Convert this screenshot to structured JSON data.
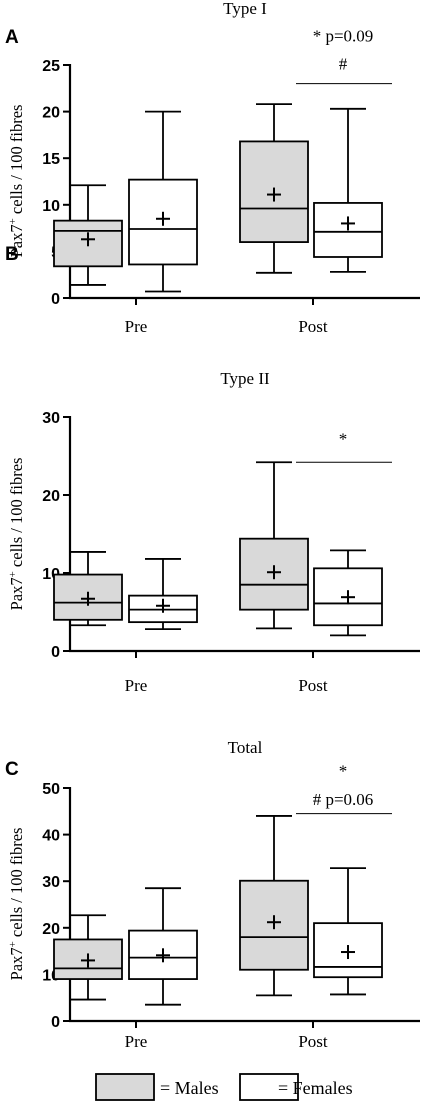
{
  "chart_data": [
    {
      "panel": "A",
      "type": "box",
      "title": "Type I",
      "ylabel": "Pax7+ cells / 100 fibres",
      "ylabel_main": "Pax7",
      "ylabel_sup": "+",
      "ylabel_rest": " cells / 100 fibres",
      "ylim": [
        0,
        25
      ],
      "yticks": [
        "0",
        "5",
        "10",
        "15",
        "20",
        "25"
      ],
      "ytick_values": [
        0,
        5,
        10,
        15,
        20,
        25
      ],
      "categories": [
        "Pre",
        "Post"
      ],
      "series": [
        {
          "name": "Males",
          "color": "#d9d9d9",
          "boxes": [
            {
              "min": 1.4,
              "q1": 3.4,
              "median": 7.2,
              "q3": 8.3,
              "max": 12.1,
              "mean": 6.3
            },
            {
              "min": 2.7,
              "q1": 6.0,
              "median": 9.6,
              "q3": 16.8,
              "max": 20.8,
              "mean": 11.1
            }
          ]
        },
        {
          "name": "Females",
          "color": "#ffffff",
          "boxes": [
            {
              "min": 0.7,
              "q1": 3.6,
              "median": 7.4,
              "q3": 12.7,
              "max": 20.0,
              "mean": 8.5
            },
            {
              "min": 2.8,
              "q1": 4.4,
              "median": 7.1,
              "q3": 10.2,
              "max": 20.3,
              "mean": 8.0
            }
          ]
        }
      ],
      "annotations": [
        {
          "text": "* p=0.09",
          "category": "Post",
          "level": 27.5
        },
        {
          "text": "#",
          "category": "Post",
          "level": 24.5
        }
      ],
      "bracket_level": 23.0
    },
    {
      "panel": "B",
      "type": "box",
      "title": "Type II",
      "ylabel": "Pax7+ cells / 100 fibres",
      "ylabel_main": "Pax7",
      "ylabel_sup": "+",
      "ylabel_rest": " cells / 100 fibres",
      "ylim": [
        0,
        30
      ],
      "yticks": [
        "0",
        "10",
        "20",
        "30"
      ],
      "ytick_values": [
        0,
        10,
        20,
        30
      ],
      "categories": [
        "Pre",
        "Post"
      ],
      "series": [
        {
          "name": "Males",
          "color": "#d9d9d9",
          "boxes": [
            {
              "min": 3.3,
              "q1": 4.0,
              "median": 6.2,
              "q3": 9.8,
              "max": 12.7,
              "mean": 6.7
            },
            {
              "min": 2.9,
              "q1": 5.3,
              "median": 8.5,
              "q3": 14.4,
              "max": 24.2,
              "mean": 10.1
            }
          ]
        },
        {
          "name": "Females",
          "color": "#ffffff",
          "boxes": [
            {
              "min": 2.8,
              "q1": 3.7,
              "median": 5.3,
              "q3": 7.1,
              "max": 11.8,
              "mean": 5.8
            },
            {
              "min": 2.0,
              "q1": 3.3,
              "median": 6.1,
              "q3": 10.6,
              "max": 12.9,
              "mean": 6.9
            }
          ]
        }
      ],
      "annotations": [
        {
          "text": "*",
          "category": "Post",
          "level": 26.5
        }
      ],
      "bracket_level": 24.2
    },
    {
      "panel": "C",
      "type": "box",
      "title": "Total",
      "ylabel": "Pax7+ cells / 100 fibres",
      "ylabel_main": "Pax7",
      "ylabel_sup": "+",
      "ylabel_rest": " cells / 100 fibres",
      "ylim": [
        0,
        50
      ],
      "yticks": [
        "0",
        "10",
        "20",
        "30",
        "40",
        "50"
      ],
      "ytick_values": [
        0,
        10,
        20,
        30,
        40,
        50
      ],
      "categories": [
        "Pre",
        "Post"
      ],
      "series": [
        {
          "name": "Males",
          "color": "#d9d9d9",
          "boxes": [
            {
              "min": 4.6,
              "q1": 9.0,
              "median": 11.3,
              "q3": 17.5,
              "max": 22.7,
              "mean": 13.0
            },
            {
              "min": 5.5,
              "q1": 11.0,
              "median": 18.0,
              "q3": 30.1,
              "max": 44.0,
              "mean": 21.2
            }
          ]
        },
        {
          "name": "Females",
          "color": "#ffffff",
          "boxes": [
            {
              "min": 3.5,
              "q1": 9.0,
              "median": 13.6,
              "q3": 19.4,
              "max": 28.5,
              "mean": 14.1
            },
            {
              "min": 5.7,
              "q1": 9.4,
              "median": 11.6,
              "q3": 21.0,
              "max": 32.8,
              "mean": 14.8
            }
          ]
        }
      ],
      "annotations": [
        {
          "text": "*",
          "category": "Post",
          "level": 52.5
        },
        {
          "text": "# p=0.06",
          "category": "Post",
          "level": 46.3
        }
      ],
      "bracket_level": 44.5
    }
  ],
  "legend": [
    {
      "label": "= Males",
      "color": "#d9d9d9"
    },
    {
      "label": "= Females",
      "color": "#ffffff"
    }
  ]
}
